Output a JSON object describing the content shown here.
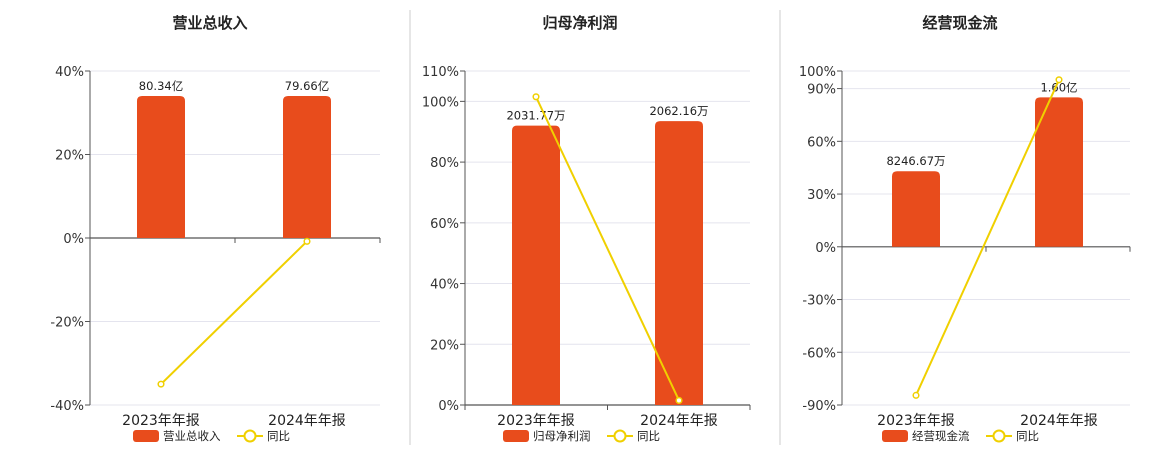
{
  "colors": {
    "bar": "#E84C1C",
    "line": "#F0D000",
    "axis": "#555555",
    "grid": "#E4E4EE",
    "divider": "#CCCCCC"
  },
  "chart_data": [
    {
      "type": "bar",
      "title": "营业总收入",
      "categories": [
        "2023年年报",
        "2024年年报"
      ],
      "ylim": [
        -40,
        40
      ],
      "yticks": [
        -40,
        -20,
        0,
        20,
        40
      ],
      "grid": true,
      "legend_position": "bottom",
      "series": [
        {
          "name": "营业总收入",
          "kind": "bar",
          "values": [
            34,
            34
          ],
          "labels": [
            "80.34亿",
            "79.66亿"
          ]
        },
        {
          "name": "同比",
          "kind": "line",
          "values": [
            -35,
            -0.8
          ]
        }
      ]
    },
    {
      "type": "bar",
      "title": "归母净利润",
      "categories": [
        "2023年年报",
        "2024年年报"
      ],
      "ylim": [
        0,
        110
      ],
      "yticks": [
        0,
        20,
        40,
        60,
        80,
        100,
        110
      ],
      "grid": true,
      "legend_position": "bottom",
      "series": [
        {
          "name": "归母净利润",
          "kind": "bar",
          "values": [
            92,
            93.5
          ],
          "labels": [
            "2031.77万",
            "2062.16万"
          ]
        },
        {
          "name": "同比",
          "kind": "line",
          "values": [
            101.5,
            1.5
          ]
        }
      ]
    },
    {
      "type": "bar",
      "title": "经营现金流",
      "categories": [
        "2023年年报",
        "2024年年报"
      ],
      "ylim": [
        -90,
        100
      ],
      "yticks": [
        -90,
        -60,
        -30,
        0,
        30,
        60,
        90,
        100
      ],
      "grid": true,
      "legend_position": "bottom",
      "series": [
        {
          "name": "经营现金流",
          "kind": "bar",
          "values": [
            43,
            85
          ],
          "labels": [
            "8246.67万",
            "1.60亿"
          ]
        },
        {
          "name": "同比",
          "kind": "line",
          "values": [
            -84.5,
            95
          ]
        }
      ]
    }
  ]
}
